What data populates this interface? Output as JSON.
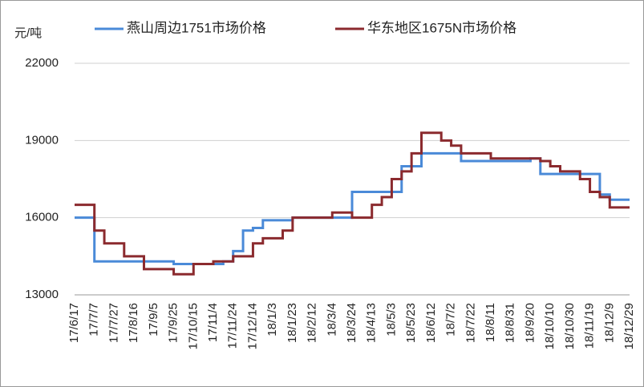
{
  "chart_data": {
    "type": "step-line",
    "y_label": "元/吨",
    "categories": [
      "17/6/17",
      null,
      "17/7/7",
      null,
      "17/7/27",
      null,
      "17/8/16",
      null,
      "17/9/5",
      null,
      "17/9/25",
      null,
      "17/10/15",
      null,
      "17/11/4",
      null,
      "17/11/24",
      null,
      "17/12/14",
      null,
      "18/1/3",
      null,
      "18/1/23",
      null,
      "18/2/12",
      null,
      "18/3/4",
      null,
      "18/3/24",
      null,
      "18/4/13",
      null,
      "18/5/3",
      null,
      "18/5/23",
      null,
      "18/6/12",
      null,
      "18/7/2",
      null,
      "18/7/22",
      null,
      "18/8/11",
      null,
      "18/8/31",
      null,
      "18/9/20",
      null,
      "18/10/10",
      null,
      "18/10/30",
      null,
      "18/11/19",
      null,
      "18/12/9",
      null,
      "18/12/29"
    ],
    "series": [
      {
        "name": "燕山周边1751市场价格",
        "color": "#4a8ad8",
        "values": [
          16000,
          16000,
          14300,
          14300,
          14300,
          14300,
          14300,
          14300,
          14300,
          14300,
          14200,
          14200,
          14200,
          14200,
          14200,
          14300,
          14700,
          15500,
          15600,
          15900,
          15900,
          15900,
          16000,
          16000,
          16000,
          16000,
          16000,
          16000,
          17000,
          17000,
          17000,
          17000,
          17000,
          18000,
          18000,
          18500,
          18500,
          18500,
          18500,
          18200,
          18200,
          18200,
          18200,
          18200,
          18200,
          18200,
          18300,
          17700,
          17700,
          17700,
          17700,
          17700,
          17700,
          16900,
          16700,
          16700,
          16700
        ]
      },
      {
        "name": "华东地区1675N市场价格",
        "color": "#8b2a2e",
        "values": [
          16500,
          16500,
          15500,
          15000,
          15000,
          14500,
          14500,
          14000,
          14000,
          14000,
          13800,
          13800,
          14200,
          14200,
          14300,
          14300,
          14500,
          14500,
          15000,
          15200,
          15200,
          15500,
          16000,
          16000,
          16000,
          16000,
          16200,
          16200,
          16000,
          16000,
          16500,
          16800,
          17500,
          17800,
          18500,
          19300,
          19300,
          19000,
          18800,
          18500,
          18500,
          18500,
          18300,
          18300,
          18300,
          18300,
          18300,
          18200,
          18000,
          17800,
          17800,
          17500,
          17000,
          16800,
          16400,
          16400,
          16400
        ]
      }
    ],
    "ylim": [
      13000,
      22000
    ],
    "yticks": [
      13000,
      16000,
      19000,
      22000
    ],
    "grid": true
  }
}
